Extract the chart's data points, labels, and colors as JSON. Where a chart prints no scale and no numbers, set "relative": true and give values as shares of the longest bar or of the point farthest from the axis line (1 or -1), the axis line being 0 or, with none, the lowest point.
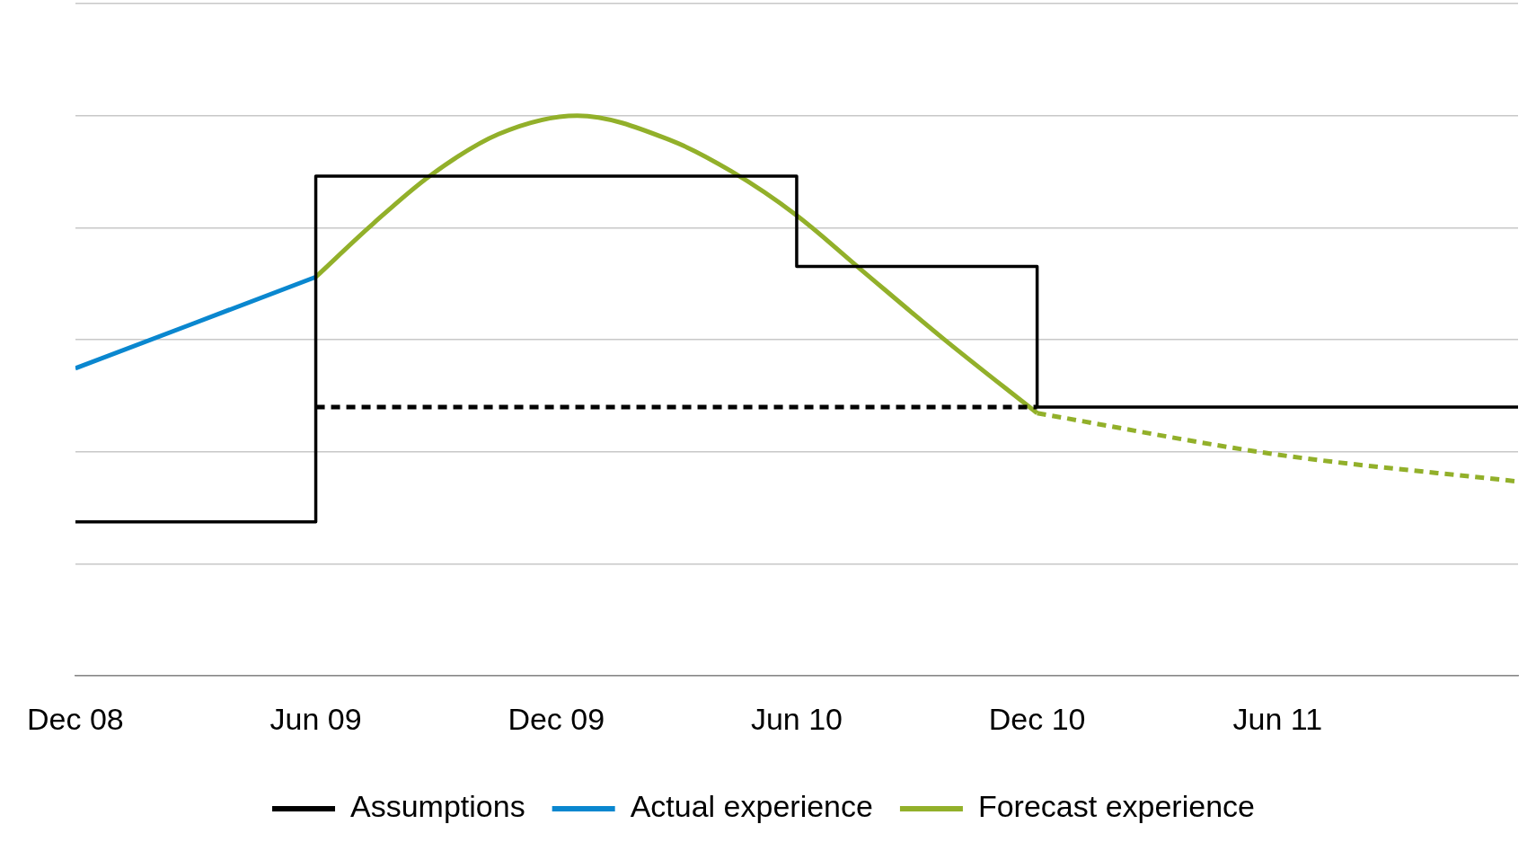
{
  "chart_data": {
    "type": "line",
    "relative": true,
    "grid": "y",
    "legend": "bottom",
    "line_style": "solid",
    "marker": "none",
    "xlim": [
      "2008-12",
      "2011-12"
    ],
    "xticks": [
      {
        "value": "2008-12",
        "label": "Dec 08"
      },
      {
        "value": "2009-06",
        "label": "Jun 09"
      },
      {
        "value": "2009-12",
        "label": "Dec 09"
      },
      {
        "value": "2010-06",
        "label": "Jun 10"
      },
      {
        "value": "2010-12",
        "label": "Dec 10"
      },
      {
        "value": "2011-06",
        "label": "Jun 11"
      }
    ],
    "series": [
      {
        "name": "Assumptions",
        "type": "step",
        "color": "#000000",
        "x": [
          "2008-12",
          "2009-06",
          "2010-06",
          "2010-12",
          "2011-12"
        ],
        "values": [
          0.275,
          0.892,
          0.731,
          0.48,
          0.48
        ]
      },
      {
        "type": "line",
        "color": "#000000",
        "line_style": "dashed",
        "x": [
          "2009-06",
          "2010-12"
        ],
        "values": [
          0.48,
          0.48
        ]
      },
      {
        "name": "Actual experience",
        "type": "line",
        "color": "#0a87cf",
        "x": [
          "2008-12",
          "2009-06"
        ],
        "values": [
          0.549,
          0.712
        ]
      },
      {
        "name": "Forecast experience",
        "type": "line",
        "color": "#92b02a",
        "x": [
          "2009-06",
          "2009-07-14",
          "2009-08-27",
          "2009-10-18",
          "2009-12-17",
          "2010-02-27",
          "2010-04-12",
          "2010-06",
          "2010-07-18",
          "2010-09-21",
          "2010-12"
        ],
        "values": [
          0.712,
          0.807,
          0.893,
          0.967,
          1,
          0.956,
          0.901,
          0.822,
          0.728,
          0.602,
          0.469
        ]
      },
      {
        "type": "line",
        "color": "#92b02a",
        "line_style": "dashed",
        "x": [
          "2010-12",
          "2011-06",
          "2011-12"
        ],
        "values": [
          0.469,
          0.395,
          0.347
        ]
      }
    ]
  }
}
